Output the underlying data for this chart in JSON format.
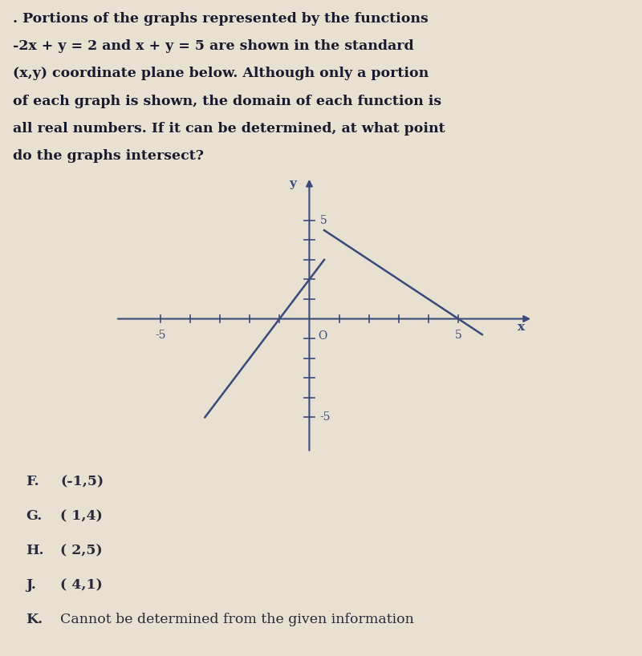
{
  "background_color": "#e8e0d0",
  "title_text_line1": ". Portions of the graphs represented by the functions",
  "title_text_line2": "-2x + y = 2 and x + y = 5 are shown in the standard",
  "title_text_line3": "(x,y) coordinate plane below. Although only a portion",
  "title_text_line4": "of each graph is shown, the domain of each function is",
  "title_text_line5": "all real numbers. If it can be determined, at what point",
  "title_text_line6": "do the graphs intersect?",
  "title_fontsize": 12.5,
  "title_color": "#1a1a2e",
  "axis_xlim": [
    -6.5,
    7.5
  ],
  "axis_ylim": [
    -6.8,
    7.2
  ],
  "x_label": "x",
  "y_label": "y",
  "tick_positions": [
    -5,
    -4,
    -3,
    -2,
    -1,
    1,
    2,
    3,
    4,
    5
  ],
  "line1_color": "#3a4a7a",
  "line2_color": "#3a4a7a",
  "answer_choices": [
    [
      "F.",
      "(-1,5)"
    ],
    [
      "G.",
      "( 1,4)"
    ],
    [
      "H.",
      "( 2,5)"
    ],
    [
      "J.",
      "( 4,1)"
    ],
    [
      "K.",
      "Cannot be determined from the given information"
    ]
  ],
  "answer_fontsize": 12.5,
  "answer_color": "#2a2a3a",
  "axis_label_fontsize": 11,
  "tick_fontsize": 10,
  "axis_color": "#3a4a7a"
}
